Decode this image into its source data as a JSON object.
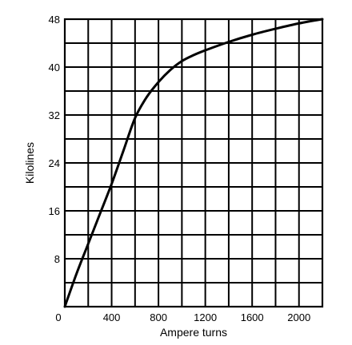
{
  "chart_data": {
    "type": "line",
    "title": "",
    "xlabel": "Ampere turns",
    "ylabel": "Kilolines",
    "xlim": [
      0,
      2200
    ],
    "ylim": [
      0,
      48
    ],
    "grid": true,
    "x_ticks": [
      "0",
      "400",
      "800",
      "1200",
      "1600",
      "2000"
    ],
    "y_ticks": [
      "0",
      "8",
      "16",
      "24",
      "32",
      "40",
      "48"
    ],
    "x_grid_step": 200,
    "y_grid_step": 4,
    "color": "#000000",
    "series": [
      {
        "x": [
          0,
          100,
          200,
          300,
          400,
          500,
          600,
          700,
          800,
          900,
          1000,
          1100,
          1200,
          1400,
          1600,
          1800,
          2000,
          2200
        ],
        "y": [
          0,
          5.5,
          10.5,
          15.5,
          20.5,
          26,
          31.5,
          35,
          37.5,
          39.5,
          41,
          42,
          42.8,
          44.2,
          45.4,
          46.4,
          47.3,
          48
        ]
      }
    ]
  }
}
